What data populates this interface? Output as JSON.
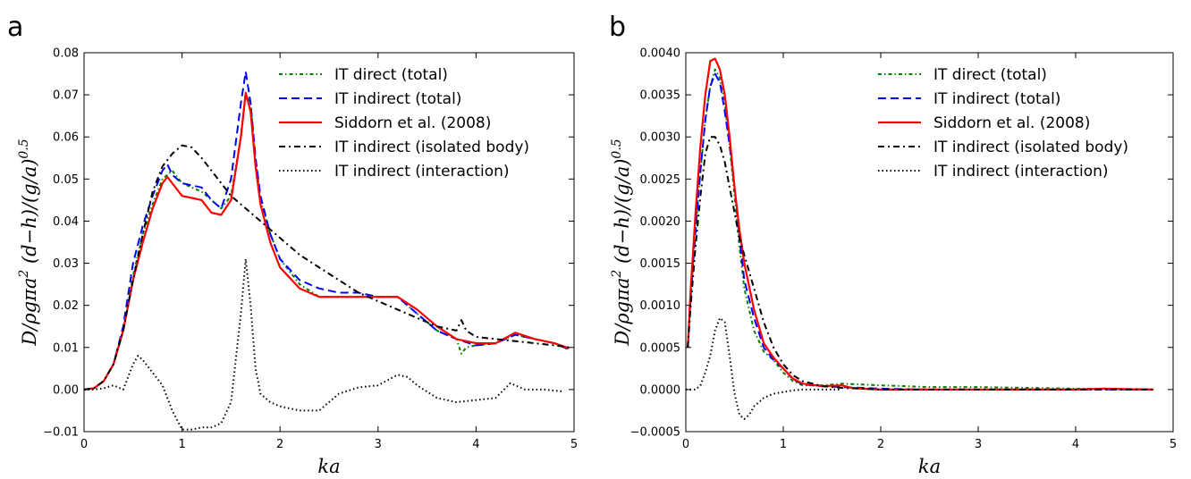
{
  "chart_data": [
    {
      "type": "line",
      "panel_label": "a",
      "xlabel": "ka",
      "ylabel": "D/ρgπa² (d−h)/(g/a)^0.5",
      "ylabel_parts": {
        "main": "D/ρgπa",
        "sup1": "2",
        "mid": " (d−h)/(g/a)",
        "sup2": "0.5"
      },
      "xlim": [
        0,
        5
      ],
      "ylim": [
        -0.01,
        0.08
      ],
      "xticks": [
        "0",
        "1",
        "2",
        "3",
        "4",
        "5"
      ],
      "yticks": [
        "−0.01",
        "0.00",
        "0.01",
        "0.02",
        "0.03",
        "0.04",
        "0.05",
        "0.06",
        "0.07",
        "0.08"
      ],
      "legend_position": "top-right",
      "grid": false,
      "series": [
        {
          "name": "IT direct (total)",
          "color": "#008000",
          "style": "dashdot-fine",
          "x": [
            0,
            0.1,
            0.2,
            0.3,
            0.4,
            0.5,
            0.6,
            0.7,
            0.8,
            0.9,
            1.0,
            1.1,
            1.2,
            1.3,
            1.4,
            1.5,
            1.6,
            1.65,
            1.7,
            1.75,
            1.8,
            1.9,
            2.0,
            2.2,
            2.4,
            2.6,
            2.8,
            3.0,
            3.2,
            3.4,
            3.6,
            3.8,
            3.85,
            3.9,
            4.0,
            4.2,
            4.4,
            4.6,
            4.8,
            4.95
          ],
          "y": [
            0,
            0.0003,
            0.002,
            0.006,
            0.014,
            0.027,
            0.037,
            0.044,
            0.05,
            0.052,
            0.049,
            0.048,
            0.047,
            0.045,
            0.043,
            0.046,
            0.06,
            0.07,
            0.068,
            0.055,
            0.045,
            0.037,
            0.031,
            0.025,
            0.022,
            0.022,
            0.022,
            0.022,
            0.022,
            0.018,
            0.014,
            0.012,
            0.0085,
            0.01,
            0.0105,
            0.011,
            0.013,
            0.012,
            0.011,
            0.0095
          ]
        },
        {
          "name": "IT indirect (total)",
          "color": "#0000ff",
          "style": "dashed",
          "x": [
            0,
            0.1,
            0.2,
            0.3,
            0.4,
            0.5,
            0.6,
            0.7,
            0.8,
            0.85,
            0.9,
            1.0,
            1.1,
            1.2,
            1.3,
            1.4,
            1.5,
            1.6,
            1.65,
            1.7,
            1.75,
            1.8,
            1.9,
            2.0,
            2.2,
            2.4,
            2.6,
            2.8,
            3.0,
            3.2,
            3.4,
            3.6,
            3.8,
            4.0,
            4.2,
            4.4,
            4.6,
            4.8,
            4.95
          ],
          "y": [
            0,
            0.0003,
            0.002,
            0.006,
            0.015,
            0.03,
            0.039,
            0.046,
            0.052,
            0.0535,
            0.051,
            0.049,
            0.0485,
            0.048,
            0.045,
            0.043,
            0.05,
            0.068,
            0.0755,
            0.068,
            0.055,
            0.046,
            0.037,
            0.031,
            0.026,
            0.024,
            0.023,
            0.023,
            0.022,
            0.022,
            0.018,
            0.014,
            0.012,
            0.0105,
            0.011,
            0.013,
            0.012,
            0.011,
            0.0095
          ]
        },
        {
          "name": "Siddorn et al. (2008)",
          "color": "#ff0000",
          "style": "solid",
          "x": [
            0,
            0.1,
            0.2,
            0.3,
            0.4,
            0.5,
            0.6,
            0.7,
            0.8,
            0.85,
            0.9,
            1.0,
            1.1,
            1.2,
            1.3,
            1.4,
            1.5,
            1.6,
            1.65,
            1.7,
            1.75,
            1.8,
            1.9,
            2.0,
            2.2,
            2.4,
            2.6,
            2.8,
            3.0,
            3.2,
            3.4,
            3.6,
            3.8,
            4.0,
            4.2,
            4.4,
            4.6,
            4.8,
            4.95
          ],
          "y": [
            0,
            0.0003,
            0.002,
            0.006,
            0.014,
            0.026,
            0.035,
            0.043,
            0.049,
            0.0505,
            0.049,
            0.046,
            0.0455,
            0.045,
            0.042,
            0.0415,
            0.045,
            0.06,
            0.0705,
            0.066,
            0.053,
            0.044,
            0.035,
            0.029,
            0.024,
            0.022,
            0.022,
            0.022,
            0.022,
            0.022,
            0.019,
            0.015,
            0.012,
            0.011,
            0.011,
            0.0135,
            0.012,
            0.011,
            0.0098
          ]
        },
        {
          "name": "IT indirect (isolated body)",
          "color": "#000000",
          "style": "dashdot",
          "x": [
            0,
            0.1,
            0.2,
            0.3,
            0.4,
            0.5,
            0.6,
            0.7,
            0.8,
            0.9,
            1.0,
            1.1,
            1.2,
            1.3,
            1.4,
            1.5,
            1.6,
            1.7,
            1.8,
            2.0,
            2.2,
            2.4,
            2.6,
            2.8,
            3.0,
            3.2,
            3.4,
            3.6,
            3.8,
            3.85,
            3.9,
            4.0,
            4.2,
            4.4,
            4.6,
            4.8,
            4.95
          ],
          "y": [
            0,
            0.0003,
            0.002,
            0.006,
            0.014,
            0.026,
            0.037,
            0.047,
            0.053,
            0.056,
            0.058,
            0.0575,
            0.055,
            0.052,
            0.049,
            0.046,
            0.044,
            0.042,
            0.04,
            0.036,
            0.032,
            0.029,
            0.026,
            0.023,
            0.021,
            0.019,
            0.017,
            0.015,
            0.014,
            0.0165,
            0.014,
            0.0125,
            0.012,
            0.0115,
            0.011,
            0.0105,
            0.01
          ]
        },
        {
          "name": "IT indirect (interaction)",
          "color": "#000000",
          "style": "dotted",
          "x": [
            0,
            0.1,
            0.2,
            0.3,
            0.4,
            0.5,
            0.55,
            0.6,
            0.7,
            0.8,
            0.9,
            1.0,
            1.1,
            1.2,
            1.3,
            1.4,
            1.5,
            1.6,
            1.65,
            1.7,
            1.75,
            1.8,
            1.9,
            2.0,
            2.2,
            2.4,
            2.6,
            2.8,
            3.0,
            3.2,
            3.3,
            3.4,
            3.6,
            3.8,
            4.0,
            4.2,
            4.35,
            4.5,
            4.7,
            4.9
          ],
          "y": [
            0,
            0,
            0.0003,
            0.001,
            0,
            0.006,
            0.008,
            0.007,
            0.004,
            0.001,
            -0.005,
            -0.0095,
            -0.0095,
            -0.009,
            -0.009,
            -0.008,
            -0.003,
            0.018,
            0.031,
            0.02,
            0.005,
            -0.001,
            -0.003,
            -0.004,
            -0.005,
            -0.005,
            -0.001,
            0.0005,
            0.001,
            0.0035,
            0.003,
            0.001,
            -0.002,
            -0.003,
            -0.0025,
            -0.002,
            0.0015,
            0,
            0,
            -0.0005
          ]
        }
      ]
    },
    {
      "type": "line",
      "panel_label": "b",
      "xlabel": "ka",
      "ylabel": "D/ρgπa² (d−h)/(g/a)^0.5",
      "ylabel_parts": {
        "main": "D/ρgπa",
        "sup1": "2",
        "mid": " (d−h)/(g/a)",
        "sup2": "0.5"
      },
      "xlim": [
        0,
        5
      ],
      "ylim": [
        -0.0005,
        0.004
      ],
      "xticks": [
        "0",
        "1",
        "2",
        "3",
        "4",
        "5"
      ],
      "yticks": [
        "−0.0005",
        "0.0000",
        "0.0005",
        "0.0010",
        "0.0015",
        "0.0020",
        "0.0025",
        "0.0030",
        "0.0035",
        "0.0040"
      ],
      "legend_position": "top-right",
      "grid": false,
      "series": [
        {
          "name": "IT direct (total)",
          "color": "#008000",
          "style": "dashdot-fine",
          "x": [
            0.02,
            0.05,
            0.1,
            0.15,
            0.2,
            0.25,
            0.3,
            0.35,
            0.4,
            0.45,
            0.5,
            0.55,
            0.6,
            0.7,
            0.8,
            0.9,
            1.0,
            1.1,
            1.2,
            1.4,
            1.6,
            1.8,
            2.0,
            2.5,
            3.0,
            4.0,
            4.8
          ],
          "y": [
            0.0005,
            0.0011,
            0.0019,
            0.0026,
            0.0032,
            0.0036,
            0.0038,
            0.0037,
            0.0034,
            0.0029,
            0.0023,
            0.0017,
            0.0012,
            0.0007,
            0.00045,
            0.00035,
            0.0002,
            0.0001,
            5e-05,
            5e-05,
            7e-05,
            6e-05,
            5e-05,
            3e-05,
            3e-05,
            1e-05,
            0
          ]
        },
        {
          "name": "IT indirect (total)",
          "color": "#0000ff",
          "style": "dashed",
          "x": [
            0.02,
            0.05,
            0.1,
            0.15,
            0.2,
            0.25,
            0.3,
            0.35,
            0.4,
            0.45,
            0.5,
            0.55,
            0.6,
            0.7,
            0.8,
            0.9,
            1.0,
            1.1,
            1.2,
            1.4,
            1.6,
            1.8,
            2.0,
            2.5,
            3.0,
            4.0,
            4.8
          ],
          "y": [
            0.0005,
            0.0011,
            0.0019,
            0.0026,
            0.0032,
            0.0036,
            0.00375,
            0.00365,
            0.0033,
            0.0029,
            0.0024,
            0.0018,
            0.0013,
            0.00085,
            0.0005,
            0.00035,
            0.00025,
            0.00012,
            6e-05,
            4e-05,
            3e-05,
            2e-05,
            1e-05,
            0,
            0,
            0,
            0
          ]
        },
        {
          "name": "Siddorn et al. (2008)",
          "color": "#ff0000",
          "style": "solid",
          "x": [
            0.02,
            0.05,
            0.1,
            0.15,
            0.2,
            0.25,
            0.3,
            0.35,
            0.4,
            0.45,
            0.5,
            0.55,
            0.6,
            0.7,
            0.8,
            0.9,
            1.0,
            1.1,
            1.2,
            1.4,
            1.6,
            1.7,
            1.8,
            2.0,
            2.5,
            3.0,
            4.0,
            4.3,
            4.8
          ],
          "y": [
            0.0005,
            0.0012,
            0.0021,
            0.0029,
            0.0035,
            0.0039,
            0.00393,
            0.0038,
            0.0035,
            0.003,
            0.0024,
            0.0019,
            0.0015,
            0.00095,
            0.00055,
            0.00038,
            0.00025,
            0.00013,
            7e-05,
            4e-05,
            5e-05,
            2e-05,
            1e-05,
            0,
            0,
            0,
            0,
            1e-05,
            0
          ]
        },
        {
          "name": "IT indirect (isolated body)",
          "color": "#000000",
          "style": "dashdot",
          "x": [
            0.02,
            0.05,
            0.1,
            0.15,
            0.2,
            0.25,
            0.3,
            0.35,
            0.4,
            0.45,
            0.5,
            0.55,
            0.6,
            0.7,
            0.8,
            0.9,
            1.0,
            1.1,
            1.2,
            1.4,
            1.6,
            1.8,
            2.0,
            2.5,
            3.0,
            4.0,
            4.8
          ],
          "y": [
            0.0005,
            0.001,
            0.0017,
            0.0023,
            0.0028,
            0.003,
            0.003,
            0.0029,
            0.0027,
            0.0024,
            0.0021,
            0.0018,
            0.0016,
            0.0012,
            0.0008,
            0.0005,
            0.0003,
            0.00017,
            0.0001,
            4e-05,
            2e-05,
            1e-05,
            0,
            0,
            0,
            0,
            0
          ]
        },
        {
          "name": "IT indirect (interaction)",
          "color": "#000000",
          "style": "dotted",
          "x": [
            0,
            0.1,
            0.15,
            0.2,
            0.25,
            0.3,
            0.35,
            0.4,
            0.45,
            0.5,
            0.55,
            0.6,
            0.65,
            0.7,
            0.8,
            0.9,
            1.0,
            1.1,
            1.2,
            1.4,
            1.6
          ],
          "y": [
            0,
            0,
            5e-05,
            0.0002,
            0.0004,
            0.0007,
            0.00085,
            0.0008,
            0.0004,
            -5e-05,
            -0.0003,
            -0.00035,
            -0.0003,
            -0.0002,
            -0.0001,
            -5e-05,
            -3e-05,
            -1e-05,
            0,
            0,
            0
          ]
        }
      ]
    }
  ]
}
